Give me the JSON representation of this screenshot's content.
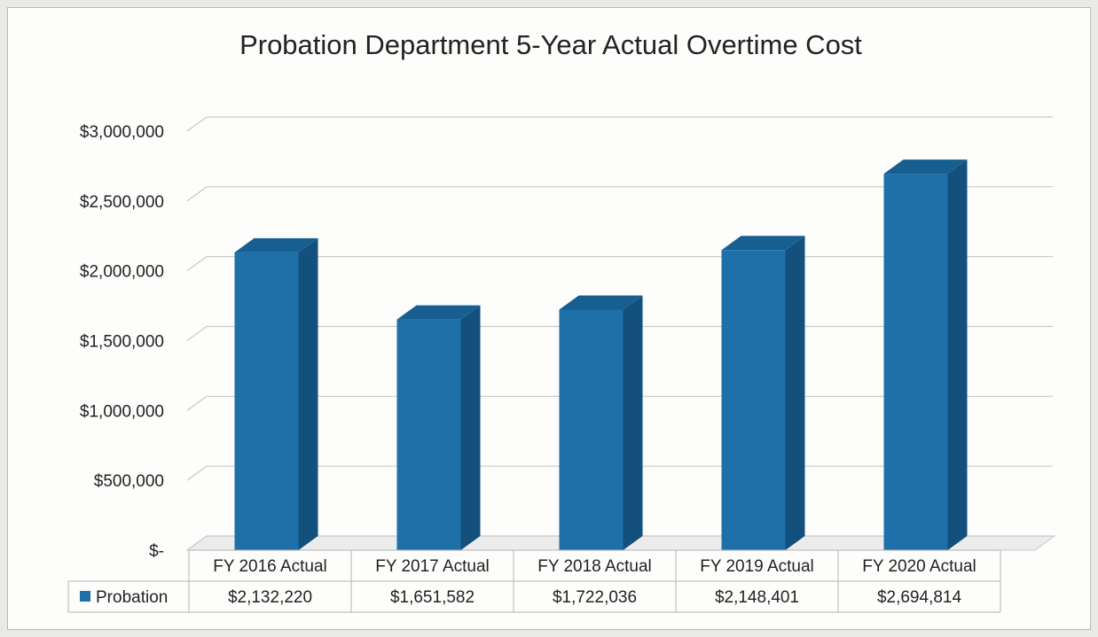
{
  "chart_data": {
    "type": "bar",
    "title": "Probation Department 5-Year Actual Overtime Cost",
    "xlabel": "",
    "ylabel": "",
    "ylim": [
      0,
      3000000
    ],
    "y_ticks": [
      {
        "value": 0,
        "label": "$-"
      },
      {
        "value": 500000,
        "label": "$500,000"
      },
      {
        "value": 1000000,
        "label": "$1,000,000"
      },
      {
        "value": 1500000,
        "label": "$1,500,000"
      },
      {
        "value": 2000000,
        "label": "$2,000,000"
      },
      {
        "value": 2500000,
        "label": "$2,500,000"
      },
      {
        "value": 3000000,
        "label": "$3,000,000"
      }
    ],
    "categories": [
      "FY 2016 Actual",
      "FY 2017 Actual",
      "FY 2018 Actual",
      "FY 2019 Actual",
      "FY 2020 Actual"
    ],
    "series": [
      {
        "name": "Probation",
        "values": [
          2132220,
          1651582,
          1722036,
          2148401,
          2694814
        ],
        "value_labels": [
          "$2,132,220",
          "$1,651,582",
          "$1,722,036",
          "$2,148,401",
          "$2,694,814"
        ]
      }
    ],
    "grid": true,
    "legend": "data-table",
    "colors": {
      "front": "#1f6fa8",
      "side": "#14507d",
      "top": "#175f91"
    }
  }
}
